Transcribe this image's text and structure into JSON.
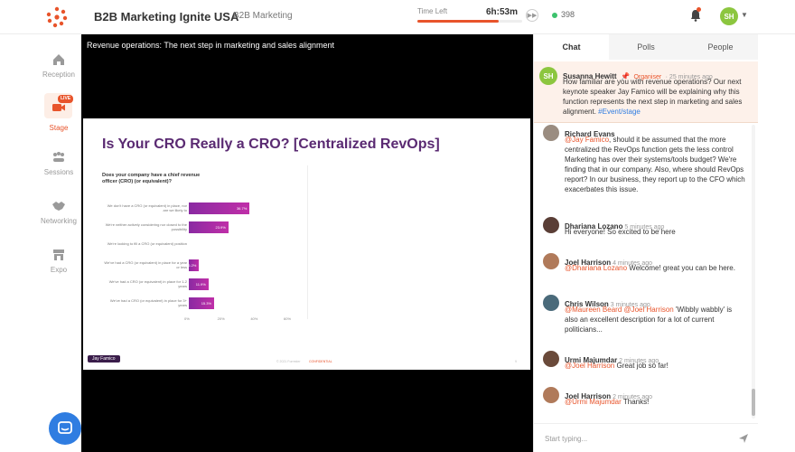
{
  "topbar": {
    "event_title": "B2B Marketing Ignite USA",
    "event_tag": "B2B Marketing",
    "time_left_label": "Time Left",
    "time_left_value": "6h:53m",
    "time_progress": 0.78,
    "online_count": "398",
    "user_initials": "SH"
  },
  "sidebar": {
    "items": [
      {
        "label": "Reception",
        "icon": "home-icon"
      },
      {
        "label": "Stage",
        "icon": "camera-icon",
        "badge": "LIVE"
      },
      {
        "label": "Sessions",
        "icon": "sessions-icon"
      },
      {
        "label": "Networking",
        "icon": "handshake-icon"
      },
      {
        "label": "Expo",
        "icon": "store-icon"
      }
    ]
  },
  "stage": {
    "caption": "Revenue operations: The next step in marketing and sales alignment",
    "slide": {
      "title": "Is Your CRO Really a CRO? [Centralized RevOps]",
      "question": "Does your company have a chief revenue officer (CRO) (or equivalent)?",
      "speaker": "Jay Famico",
      "footer_left": "© 2021 Forrester",
      "footer_mid": "CONFIDENTIAL",
      "footer_page": "9"
    }
  },
  "chart_data": {
    "type": "bar",
    "orientation": "horizontal",
    "title": "Is Your CRO Really a CRO? [Centralized RevOps]",
    "categories": [
      "We don't have a CRO (or equivalent) in place, nor are we likely to",
      "We're neither actively considering nor closed to the possibility",
      "We're looking to fill a CRO (or equivalent) position",
      "We've had a CRO (or equivalent) in place for a year or less",
      "We've had a CRO (or equivalent) in place for 1-2 years",
      "We've had a CRO (or equivalent) in place for 3+ years"
    ],
    "values": [
      36.7,
      23.9,
      0,
      6.2,
      11.9,
      15.3
    ],
    "value_labels": [
      "36.7%",
      "23.9%",
      "",
      "6.2%",
      "11.9%",
      "15.3%"
    ],
    "ticks": [
      "0%",
      "20%",
      "40%",
      "60%"
    ],
    "xlim": [
      0,
      60
    ]
  },
  "panel": {
    "tabs": [
      "Chat",
      "Polls",
      "People"
    ],
    "active_tab": 0,
    "pinned": {
      "initials": "SH",
      "name": "Susanna Hewitt",
      "role": "Organiser",
      "time": "25 minutes ago",
      "text_a": "How familiar are you with revenue operations? Our next keynote speaker Jay Famico will be explaining why this function represents the next step in marketing and sales alignment.",
      "hashtag": "#Event/stage"
    },
    "messages": [
      {
        "name": "Richard Evans",
        "time": "",
        "mention": "@Jay Famico",
        "text": ", should it be assumed that the more centralized the RevOps function gets the less control Marketing has over their systems/tools budget? We're finding that in our company. Also, where should RevOps report? In our business, they report up to the CFO which exacerbates this issue.",
        "color": "#9a8c80"
      },
      {
        "name": "Dhariana Lozano",
        "time": "5 minutes ago",
        "mention": "",
        "text": "Hi everyone! So excited to be here",
        "color": "#5a3e36"
      },
      {
        "name": "Joel Harrison",
        "time": "4 minutes ago",
        "mention": "@Dhariana Lozano",
        "text": " Welcome! great you can be here.",
        "color": "#b07a5a"
      },
      {
        "name": "Chris Wilson",
        "time": "3 minutes ago",
        "mention": "@Maureen Beard @Joel Harrison",
        "text": " 'Wibbly wabbly' is also an excellent description for a lot of current politicians...",
        "color": "#4a6a7a"
      },
      {
        "name": "Urmi Majumdar",
        "time": "2 minutes ago",
        "mention": "@Joel Harrison",
        "text": " Great job so far!",
        "color": "#6a4a3a"
      },
      {
        "name": "Joel Harrison",
        "time": "2 minutes ago",
        "mention": "@Urmi Majumdar",
        "text": " Thanks!",
        "color": "#b07a5a"
      }
    ],
    "compose_placeholder": "Start typing..."
  },
  "colors": {
    "accent": "#e8542b",
    "slide_title": "#5a2a72",
    "bar": "#a02ca6",
    "online": "#3cc26d",
    "help": "#2f7de1"
  }
}
